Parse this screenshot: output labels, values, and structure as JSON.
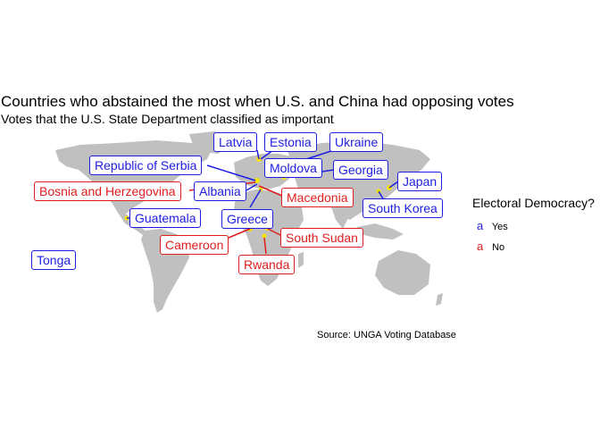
{
  "title": "Countries who abstained the most when U.S. and China had opposing votes",
  "subtitle": "Votes that the U.S. State Department classified as important",
  "source": "Source: UNGA Voting Database",
  "legend": {
    "title": "Electoral Democracy?",
    "key_glyph": "a",
    "items": [
      {
        "label": "Yes",
        "color": "#1e1ee0"
      },
      {
        "label": "No",
        "color": "#e01e1e"
      }
    ]
  },
  "colors": {
    "land": "#c0c0c0",
    "highlight": "#f5e400",
    "yes": "#1e1ee0",
    "no": "#e01e1e"
  },
  "countries": [
    {
      "name": "Latvia",
      "democracy": "yes"
    },
    {
      "name": "Estonia",
      "democracy": "yes"
    },
    {
      "name": "Ukraine",
      "democracy": "yes"
    },
    {
      "name": "Republic of Serbia",
      "democracy": "yes"
    },
    {
      "name": "Moldova",
      "democracy": "yes"
    },
    {
      "name": "Georgia",
      "democracy": "yes"
    },
    {
      "name": "Japan",
      "democracy": "yes"
    },
    {
      "name": "Bosnia and Herzegovina",
      "democracy": "no"
    },
    {
      "name": "Albania",
      "democracy": "yes"
    },
    {
      "name": "Macedonia",
      "democracy": "no"
    },
    {
      "name": "South Korea",
      "democracy": "yes"
    },
    {
      "name": "Guatemala",
      "democracy": "yes"
    },
    {
      "name": "Greece",
      "democracy": "yes"
    },
    {
      "name": "Cameroon",
      "democracy": "no"
    },
    {
      "name": "South Sudan",
      "democracy": "no"
    },
    {
      "name": "Rwanda",
      "democracy": "no"
    },
    {
      "name": "Tonga",
      "democracy": "yes"
    }
  ]
}
